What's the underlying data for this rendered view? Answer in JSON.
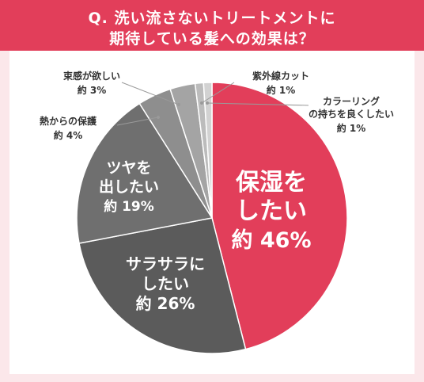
{
  "title_lines": [
    "Q. 洗い流さないトリートメントに",
    "期待している髪への効果は？"
  ],
  "colors": {
    "accent": "#e23e5a",
    "background": "#fbe7ea",
    "panel": "#ffffff"
  },
  "chart_data": {
    "type": "pie",
    "start_angle_deg": 0,
    "direction": "clockwise",
    "slices": [
      {
        "lines": [
          "保湿を",
          "したい"
        ],
        "value_label": "約 46%",
        "value": 46,
        "color": "#e23e5a",
        "label_inside": true
      },
      {
        "lines": [
          "サラサラに",
          "したい"
        ],
        "value_label": "約 26%",
        "value": 26,
        "color": "#5b5b5b",
        "label_inside": true
      },
      {
        "lines": [
          "ツヤを",
          "出したい"
        ],
        "value_label": "約 19%",
        "value": 19,
        "color": "#6f6f6f",
        "label_inside": true
      },
      {
        "lines": [
          "熱からの保護"
        ],
        "value_label": "約 4%",
        "value": 4,
        "color": "#8e8e8e",
        "label_inside": false
      },
      {
        "lines": [
          "束感が欲しい"
        ],
        "value_label": "約 3%",
        "value": 3,
        "color": "#a4a4a4",
        "label_inside": false
      },
      {
        "lines": [
          "紫外線カット"
        ],
        "value_label": "約 1%",
        "value": 1,
        "color": "#bcbcbc",
        "label_inside": false
      },
      {
        "lines": [
          "カラーリング",
          "の持ちを良くしたい"
        ],
        "value_label": "約 1%",
        "value": 1,
        "color": "#d2d2d2",
        "label_inside": false
      }
    ]
  }
}
